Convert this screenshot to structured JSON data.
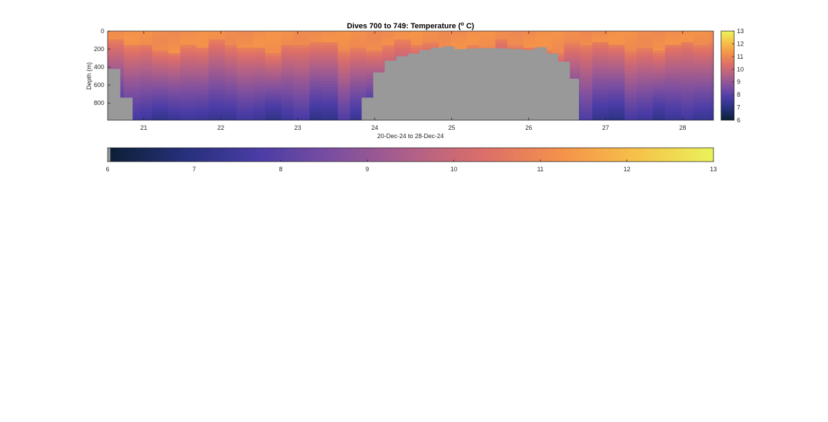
{
  "chart_data": {
    "type": "heatmap",
    "title_main": "Dives 700 to 749: Temperature (",
    "title_sup": "o",
    "title_end": " C)",
    "xlabel": "20-Dec-24 to 28-Dec-24",
    "ylabel": "Depth (m)",
    "xlim": [
      20.53,
      28.4
    ],
    "ylim": [
      0,
      990
    ],
    "x_ticks": [
      21,
      22,
      23,
      24,
      25,
      26,
      27,
      28
    ],
    "x_tick_labels": [
      "21",
      "22",
      "23",
      "24",
      "25",
      "26",
      "27",
      "28"
    ],
    "y_ticks": [
      0,
      200,
      400,
      600,
      800
    ],
    "y_tick_labels": [
      "0",
      "200",
      "400",
      "600",
      "800"
    ],
    "clim": [
      6,
      13
    ],
    "colorbar_ticks": [
      "6",
      "7",
      "8",
      "9",
      "10",
      "11",
      "12",
      "13"
    ],
    "colormap": [
      "#0b1f33",
      "#25307a",
      "#4a3ca6",
      "#7d4fa0",
      "#b06088",
      "#dd6f68",
      "#f5924a",
      "#f6c24a",
      "#eaf35a"
    ],
    "nodata_color": "#999999",
    "dives": [
      {
        "t": 20.53,
        "max_depth": 420
      },
      {
        "t": 20.62,
        "max_depth": 420
      },
      {
        "t": 20.69,
        "max_depth": 740
      },
      {
        "t": 20.78,
        "max_depth": 740
      },
      {
        "t": 20.85,
        "max_depth": 990
      },
      {
        "t": 21.2,
        "max_depth": 990
      },
      {
        "t": 21.6,
        "max_depth": 990
      },
      {
        "t": 22.0,
        "max_depth": 990
      },
      {
        "t": 22.4,
        "max_depth": 990
      },
      {
        "t": 22.8,
        "max_depth": 990
      },
      {
        "t": 23.2,
        "max_depth": 990
      },
      {
        "t": 23.6,
        "max_depth": 990
      },
      {
        "t": 23.83,
        "max_depth": 740
      },
      {
        "t": 23.98,
        "max_depth": 460
      },
      {
        "t": 24.13,
        "max_depth": 330
      },
      {
        "t": 24.28,
        "max_depth": 280
      },
      {
        "t": 24.43,
        "max_depth": 250
      },
      {
        "t": 24.58,
        "max_depth": 210
      },
      {
        "t": 24.73,
        "max_depth": 185
      },
      {
        "t": 24.88,
        "max_depth": 170
      },
      {
        "t": 25.03,
        "max_depth": 200
      },
      {
        "t": 25.18,
        "max_depth": 195
      },
      {
        "t": 25.33,
        "max_depth": 190
      },
      {
        "t": 25.48,
        "max_depth": 190
      },
      {
        "t": 25.63,
        "max_depth": 195
      },
      {
        "t": 25.78,
        "max_depth": 200
      },
      {
        "t": 25.93,
        "max_depth": 210
      },
      {
        "t": 26.08,
        "max_depth": 180
      },
      {
        "t": 26.23,
        "max_depth": 250
      },
      {
        "t": 26.38,
        "max_depth": 340
      },
      {
        "t": 26.53,
        "max_depth": 530
      },
      {
        "t": 26.65,
        "max_depth": 990
      },
      {
        "t": 28.4,
        "max_depth": 990
      }
    ]
  }
}
